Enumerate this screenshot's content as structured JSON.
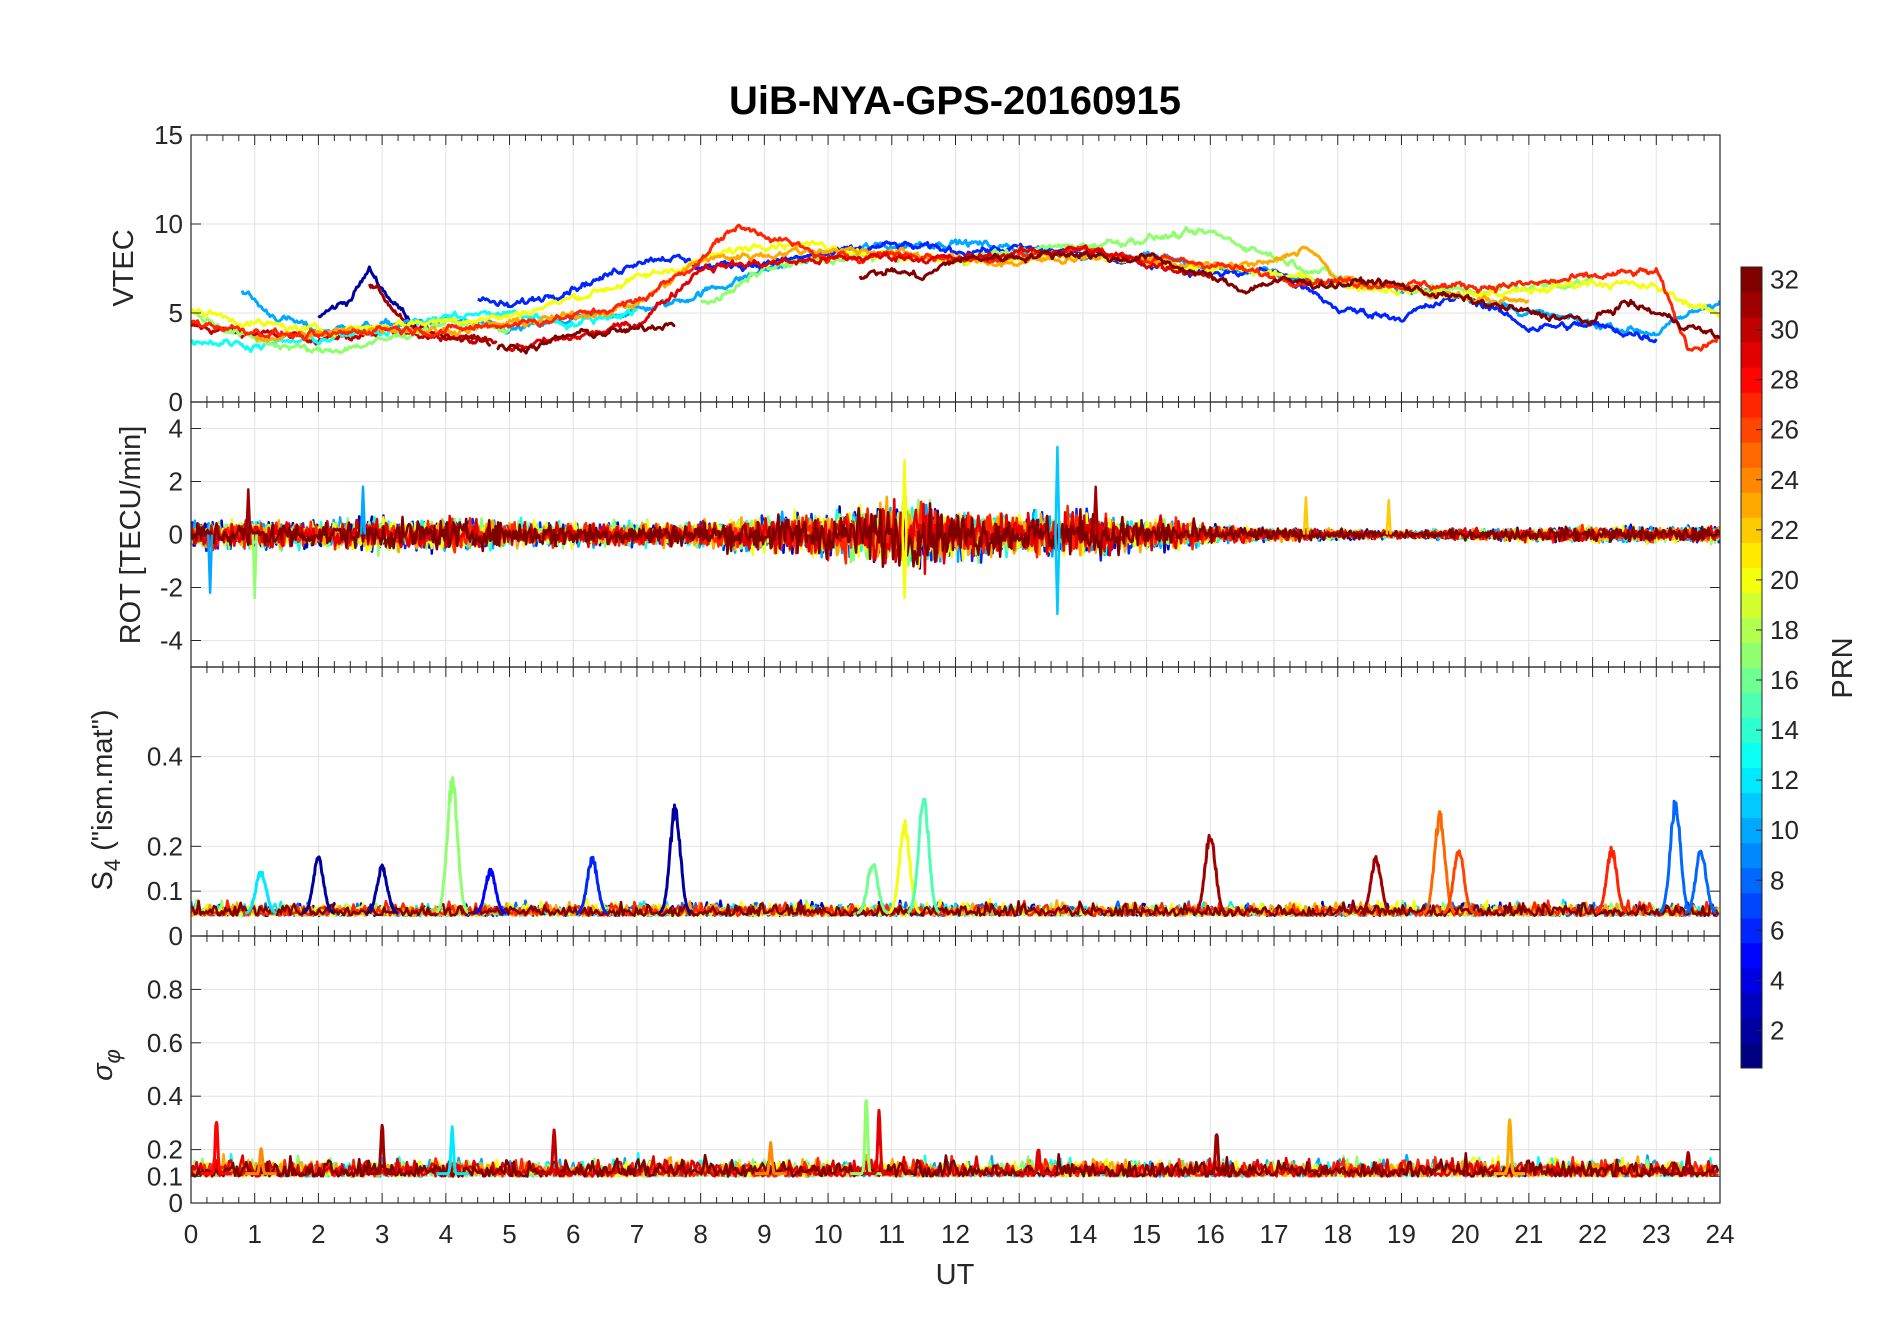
{
  "chart_data": {
    "type": "line",
    "title": "UiB-NYA-GPS-20160915",
    "xlabel": "UT",
    "xlim": [
      0,
      24
    ],
    "xticks": [
      0,
      1,
      2,
      3,
      4,
      5,
      6,
      7,
      8,
      9,
      10,
      11,
      12,
      13,
      14,
      15,
      16,
      17,
      18,
      19,
      20,
      21,
      22,
      23,
      24
    ],
    "colorbar": {
      "label": "PRN",
      "range": [
        1,
        32
      ],
      "colormap": "jet",
      "ticks": [
        2,
        4,
        6,
        8,
        10,
        12,
        14,
        16,
        18,
        20,
        22,
        24,
        26,
        28,
        30,
        32
      ]
    },
    "panels": [
      {
        "name": "vtec",
        "ylabel": "VTEC",
        "ylim": [
          0,
          15
        ],
        "yticks": [
          0,
          5,
          10,
          15
        ],
        "series": [
          {
            "prn": 30,
            "x": [
              0,
              1,
              2,
              3,
              4,
              4.8
            ],
            "y": [
              4.2,
              3.8,
              3.6,
              3.8,
              3.8,
              3.3
            ]
          },
          {
            "prn": 2,
            "x": [
              2,
              2.5,
              2.8,
              3.2,
              3.6
            ],
            "y": [
              4.8,
              5.8,
              7.4,
              5.5,
              4.2
            ]
          },
          {
            "prn": 31,
            "x": [
              2.8,
              3.0,
              3.4,
              4.0,
              4.7
            ],
            "y": [
              6.5,
              6.0,
              4.2,
              3.8,
              3.4
            ]
          },
          {
            "prn": 10,
            "x": [
              0.8,
              1.2,
              2,
              3,
              4,
              5,
              6,
              7.5,
              9,
              10,
              11,
              12,
              13,
              14,
              15,
              16,
              17,
              18,
              19,
              20,
              21,
              22,
              23,
              24
            ],
            "y": [
              6.3,
              5.0,
              4.0,
              4.3,
              4.6,
              4.0,
              4.6,
              5.5,
              7.4,
              8.4,
              8.8,
              9.0,
              8.6,
              8.3,
              8.2,
              7.6,
              7.2,
              6.6,
              6.4,
              6.0,
              5.0,
              4.4,
              3.9,
              5.8
            ]
          },
          {
            "prn": 6,
            "x": [
              4.5,
              5,
              6,
              6.5,
              7,
              7.5,
              8,
              9,
              10,
              11,
              12,
              13,
              14,
              15,
              16,
              17,
              18,
              19,
              20,
              21,
              22,
              23
            ],
            "y": [
              5.8,
              5.3,
              6.5,
              7.0,
              8.0,
              8.2,
              7.6,
              7.8,
              8.3,
              8.8,
              8.5,
              8.6,
              8.4,
              7.8,
              7.2,
              7.4,
              5.2,
              4.8,
              6.0,
              4.2,
              4.3,
              3.6
            ]
          },
          {
            "prn": 13,
            "x": [
              0,
              1,
              2,
              3,
              4,
              5,
              6,
              7
            ],
            "y": [
              3.5,
              3.2,
              3.5,
              4.0,
              4.8,
              5.0,
              4.4,
              5.2
            ]
          },
          {
            "prn": 17,
            "x": [
              0,
              0.5,
              1,
              2,
              3,
              4,
              5
            ],
            "y": [
              5.0,
              4.2,
              3.5,
              2.8,
              3.4,
              4.5,
              4.0
            ]
          },
          {
            "prn": 17,
            "x": [
              8,
              8.5,
              9,
              10,
              11,
              12,
              13,
              14,
              15,
              16,
              17,
              18,
              19,
              20,
              21,
              22
            ],
            "y": [
              5.6,
              6.2,
              7.5,
              8.0,
              8.2,
              8.0,
              8.5,
              8.8,
              9.2,
              9.5,
              8.2,
              7.0,
              6.5,
              6.2,
              6.5,
              6.8
            ]
          },
          {
            "prn": 20,
            "x": [
              0,
              1,
              2,
              3,
              4,
              5,
              9,
              10,
              11,
              12,
              13,
              14,
              15,
              16,
              17,
              18,
              20,
              21,
              22,
              23,
              24
            ],
            "y": [
              5.2,
              4.4,
              4.0,
              4.3,
              4.6,
              4.8,
              9.0,
              8.8,
              8.2,
              8.0,
              8.0,
              8.2,
              7.8,
              7.5,
              7.2,
              6.6,
              6.0,
              6.2,
              6.8,
              6.4,
              4.8
            ]
          },
          {
            "prn": 23,
            "x": [
              1,
              2,
              3,
              4,
              5,
              6,
              7,
              8,
              9,
              10,
              11,
              12,
              13,
              14,
              15,
              16,
              17,
              17.5,
              18,
              19,
              20,
              21
            ],
            "y": [
              3.6,
              3.8,
              4.2,
              4.0,
              4.4,
              4.8,
              5.5,
              8.0,
              8.3,
              8.6,
              8.4,
              8.0,
              7.8,
              8.2,
              8.0,
              7.6,
              7.8,
              8.8,
              6.8,
              6.5,
              5.8,
              5.6
            ]
          },
          {
            "prn": 27,
            "x": [
              0,
              1,
              2,
              3,
              4,
              5,
              6,
              7,
              8,
              8.5,
              9,
              10,
              11,
              12,
              13,
              14,
              15,
              16,
              17,
              18,
              19,
              20,
              21,
              22,
              22.5,
              23,
              23.5,
              24
            ],
            "y": [
              4.5,
              4.0,
              3.6,
              4.2,
              4.0,
              4.4,
              4.8,
              5.6,
              8.0,
              9.8,
              9.5,
              8.0,
              8.4,
              8.0,
              8.2,
              8.6,
              8.0,
              7.8,
              7.0,
              6.8,
              6.6,
              6.5,
              6.6,
              7.0,
              7.2,
              7.3,
              3.0,
              3.6
            ]
          },
          {
            "prn": 29,
            "x": [
              5,
              6,
              7,
              7.7,
              8,
              9,
              10,
              11,
              12,
              13,
              14,
              15,
              16
            ],
            "y": [
              3.0,
              3.6,
              4.4,
              6.5,
              7.6,
              7.8,
              8.0,
              8.2,
              8.0,
              8.4,
              8.6,
              7.8,
              7.2
            ]
          },
          {
            "prn": 32,
            "x": [
              4.8,
              5.5,
              6,
              7,
              7.6
            ],
            "y": [
              3.0,
              3.2,
              3.8,
              4.0,
              4.6
            ]
          },
          {
            "prn": 32,
            "x": [
              10.5,
              11,
              11.5,
              12,
              14,
              14.5,
              15,
              16,
              16.5,
              17,
              18,
              18.6,
              21,
              22,
              22.5,
              23,
              24
            ],
            "y": [
              7.0,
              7.4,
              7.0,
              8.0,
              8.4,
              8.0,
              8.2,
              7.0,
              6.3,
              6.8,
              6.6,
              6.8,
              5.0,
              4.5,
              5.6,
              5.0,
              3.6
            ]
          }
        ]
      },
      {
        "name": "rot",
        "ylabel": "ROT [TECU/min]",
        "ylim": [
          -5,
          5
        ],
        "yticks": [
          -4,
          -2,
          0,
          2,
          4
        ],
        "activity_envelope_hourly": [
          0.5,
          0.6,
          0.5,
          0.6,
          0.6,
          0.5,
          0.5,
          0.4,
          0.5,
          0.7,
          0.9,
          1.2,
          1.0,
          0.7,
          0.9,
          0.6,
          0.4,
          0.25,
          0.2,
          0.15,
          0.2,
          0.25,
          0.3,
          0.3,
          0.3
        ],
        "prns": [
          3,
          6,
          10,
          13,
          17,
          20,
          23,
          27,
          29,
          32
        ],
        "spikes": [
          {
            "x": 0.3,
            "y": -2.2,
            "prn": 10
          },
          {
            "x": 1.0,
            "y": -2.4,
            "prn": 17
          },
          {
            "x": 0.9,
            "y": 1.7,
            "prn": 31
          },
          {
            "x": 2.7,
            "y": 1.8,
            "prn": 10
          },
          {
            "x": 11.2,
            "y": 2.8,
            "prn": 20
          },
          {
            "x": 11.2,
            "y": -2.4,
            "prn": 20
          },
          {
            "x": 13.6,
            "y": 3.3,
            "prn": 11
          },
          {
            "x": 13.6,
            "y": -3.0,
            "prn": 11
          },
          {
            "x": 14.2,
            "y": 1.8,
            "prn": 31
          },
          {
            "x": 17.5,
            "y": 1.4,
            "prn": 22
          },
          {
            "x": 18.8,
            "y": 1.3,
            "prn": 22
          }
        ]
      },
      {
        "name": "s4",
        "ylabel_main": "S",
        "ylabel_sub": "4",
        "ylabel_suffix": " (\"ism.mat\")",
        "ylim": [
          0,
          0.6
        ],
        "yticks": [
          0,
          0.1,
          0.2,
          0.4
        ],
        "baseline": 0.05,
        "prns": [
          3,
          8,
          12,
          17,
          20,
          23,
          27,
          32
        ],
        "peaks": [
          {
            "x": 1.1,
            "y": 0.15,
            "prn": 12
          },
          {
            "x": 2.0,
            "y": 0.18,
            "prn": 2
          },
          {
            "x": 3.0,
            "y": 0.16,
            "prn": 2
          },
          {
            "x": 4.1,
            "y": 0.36,
            "prn": 17
          },
          {
            "x": 4.7,
            "y": 0.15,
            "prn": 5
          },
          {
            "x": 6.3,
            "y": 0.18,
            "prn": 6
          },
          {
            "x": 7.6,
            "y": 0.3,
            "prn": 2
          },
          {
            "x": 10.7,
            "y": 0.17,
            "prn": 16
          },
          {
            "x": 11.2,
            "y": 0.26,
            "prn": 20
          },
          {
            "x": 11.5,
            "y": 0.32,
            "prn": 15
          },
          {
            "x": 16.0,
            "y": 0.24,
            "prn": 31
          },
          {
            "x": 18.6,
            "y": 0.18,
            "prn": 31
          },
          {
            "x": 19.6,
            "y": 0.28,
            "prn": 25
          },
          {
            "x": 19.9,
            "y": 0.2,
            "prn": 26
          },
          {
            "x": 22.3,
            "y": 0.2,
            "prn": 27
          },
          {
            "x": 23.3,
            "y": 0.31,
            "prn": 8
          },
          {
            "x": 23.7,
            "y": 0.2,
            "prn": 8
          }
        ]
      },
      {
        "name": "sigma_phi",
        "ylabel_main": "σ",
        "ylabel_sub": "φ",
        "ylim": [
          0,
          1
        ],
        "yticks": [
          0,
          0.1,
          0.2,
          0.4,
          0.6,
          0.8
        ],
        "baseline": 0.11,
        "prns": [
          10,
          13,
          17,
          20,
          23,
          27,
          29,
          32
        ],
        "peaks": [
          {
            "x": 0.4,
            "y": 0.32,
            "prn": 28
          },
          {
            "x": 1.1,
            "y": 0.21,
            "prn": 24
          },
          {
            "x": 3.0,
            "y": 0.3,
            "prn": 31
          },
          {
            "x": 4.1,
            "y": 0.29,
            "prn": 12
          },
          {
            "x": 5.7,
            "y": 0.28,
            "prn": 30
          },
          {
            "x": 9.1,
            "y": 0.23,
            "prn": 24
          },
          {
            "x": 10.6,
            "y": 0.43,
            "prn": 17
          },
          {
            "x": 10.8,
            "y": 0.35,
            "prn": 29
          },
          {
            "x": 13.3,
            "y": 0.21,
            "prn": 29
          },
          {
            "x": 16.1,
            "y": 0.28,
            "prn": 31
          },
          {
            "x": 20.7,
            "y": 0.33,
            "prn": 23
          },
          {
            "x": 23.5,
            "y": 0.19,
            "prn": 31
          }
        ]
      }
    ]
  }
}
